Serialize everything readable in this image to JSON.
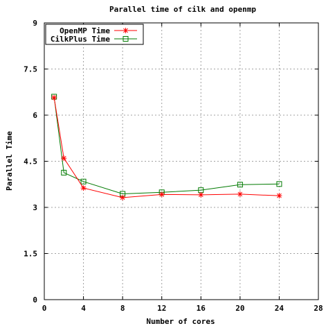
{
  "chart_data": {
    "type": "line",
    "title": "Parallel time of cilk and openmp",
    "xlabel": "Number of cores",
    "ylabel": "Parallel Time",
    "xlim": [
      0,
      28
    ],
    "ylim": [
      0,
      9
    ],
    "x_ticks": [
      0,
      4,
      8,
      12,
      16,
      20,
      24,
      28
    ],
    "y_ticks": [
      0,
      1.5,
      3,
      4.5,
      6,
      7.5,
      9
    ],
    "x_tick_labels": [
      "0",
      "4",
      "8",
      "12",
      "16",
      "20",
      "24",
      "28"
    ],
    "y_tick_labels": [
      "0",
      "1.5",
      "3",
      "4.5",
      "6",
      "7.5",
      "9"
    ],
    "grid": true,
    "legend_position": "top-left",
    "series": [
      {
        "name": "OpenMP Time",
        "color": "#ff0000",
        "marker": "asterisk",
        "x": [
          1,
          2,
          4,
          8,
          12,
          16,
          20,
          24
        ],
        "y": [
          6.57,
          4.6,
          3.63,
          3.32,
          3.42,
          3.41,
          3.43,
          3.38
        ]
      },
      {
        "name": "CilkPlus Time",
        "color": "#007a00",
        "marker": "square",
        "x": [
          1,
          2,
          4,
          8,
          12,
          16,
          20,
          24
        ],
        "y": [
          6.6,
          4.13,
          3.84,
          3.44,
          3.49,
          3.56,
          3.74,
          3.76
        ]
      }
    ]
  }
}
